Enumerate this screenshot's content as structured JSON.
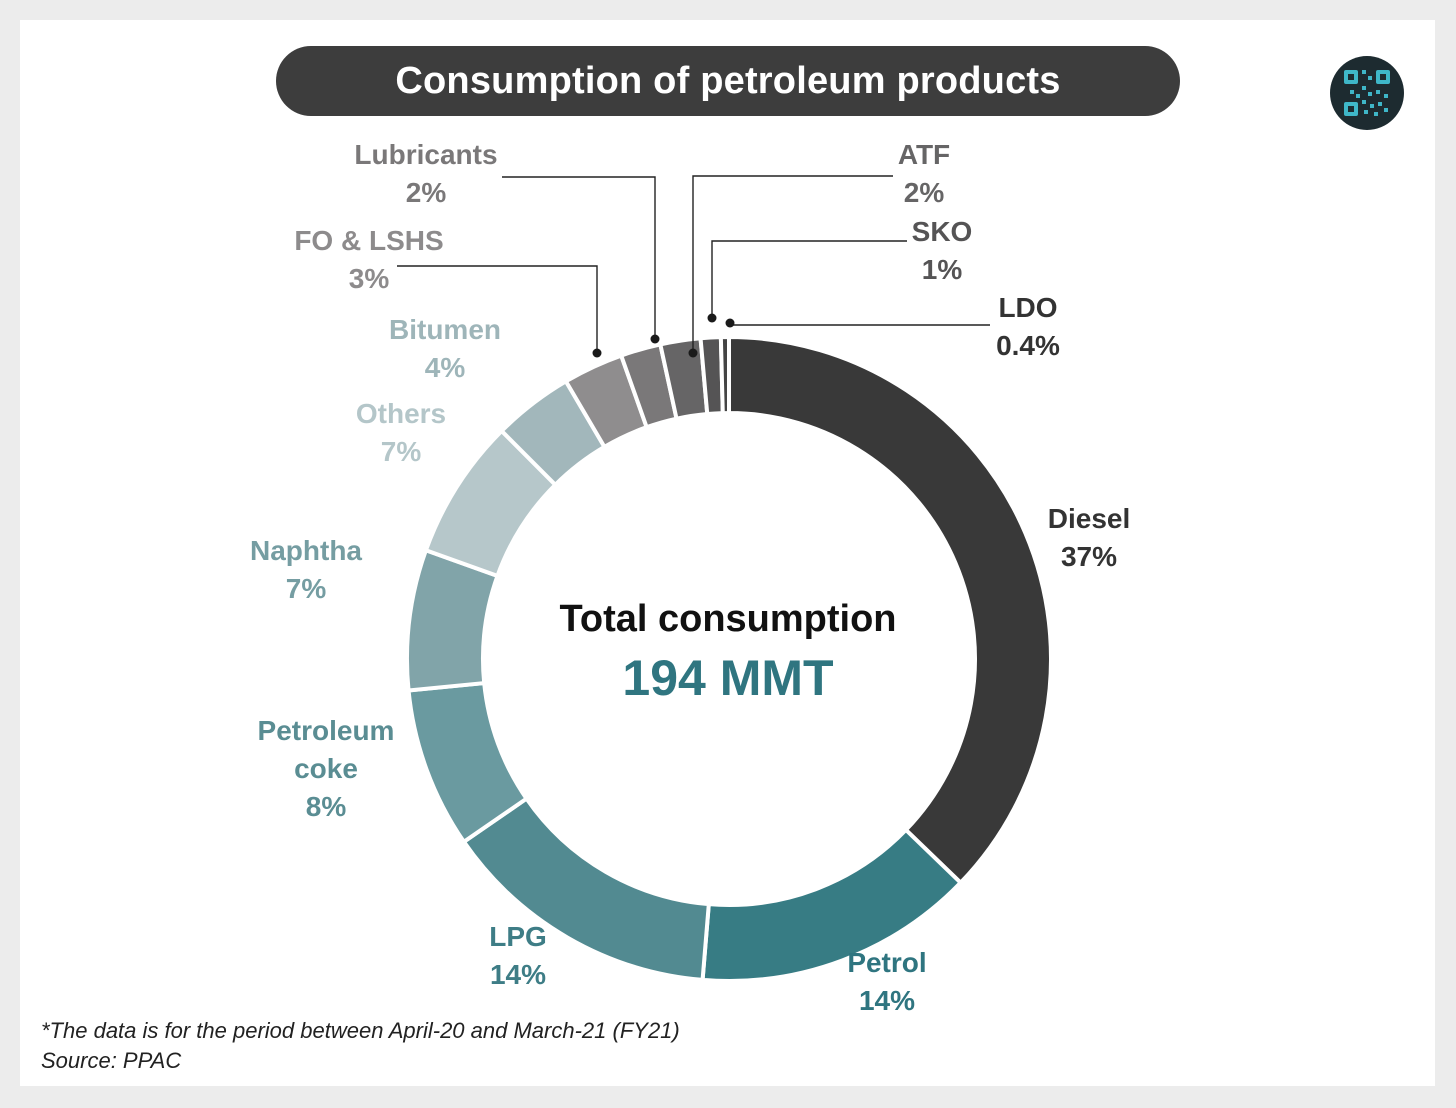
{
  "header": {
    "title": "Consumption of petroleum products"
  },
  "center": {
    "label": "Total consumption",
    "value": "194 MMT",
    "value_color": "#2f7580"
  },
  "footnote": {
    "line1": "*The data is for the period between April-20 and March-21 (FY21)",
    "line2": "Source: PPAC"
  },
  "logo": {
    "icon": "qr-code-icon"
  },
  "chart_data": {
    "type": "pie",
    "donut": true,
    "title": "Consumption of petroleum products",
    "total_label": "Total consumption",
    "total_value": "194 MMT",
    "slices": [
      {
        "name": "Diesel",
        "value": 37,
        "label": "37%",
        "color": "#393939",
        "label_color": "#333333"
      },
      {
        "name": "Petrol",
        "value": 14,
        "label": "14%",
        "color": "#377c84",
        "label_color": "#2f7580"
      },
      {
        "name": "LPG",
        "value": 14,
        "label": "14%",
        "color": "#528a91",
        "label_color": "#3e7d86"
      },
      {
        "name": "Petroleum coke",
        "value": 8,
        "label": "8%",
        "color": "#6a9aa0",
        "label_color": "#5a8d93"
      },
      {
        "name": "Naphtha",
        "value": 7,
        "label": "7%",
        "color": "#81a4a9",
        "label_color": "#759da2"
      },
      {
        "name": "Others",
        "value": 7,
        "label": "7%",
        "color": "#b6c7ca",
        "label_color": "#b4c6c9"
      },
      {
        "name": "Bitumen",
        "value": 4,
        "label": "4%",
        "color": "#a2b7bb",
        "label_color": "#9eb5b9"
      },
      {
        "name": "FO & LSHS",
        "value": 3,
        "label": "3%",
        "color": "#8f8d8e",
        "label_color": "#8d8b8c"
      },
      {
        "name": "Lubricants",
        "value": 2,
        "label": "2%",
        "color": "#7a7879",
        "label_color": "#7a7879"
      },
      {
        "name": "ATF",
        "value": 2,
        "label": "2%",
        "color": "#666566",
        "label_color": "#666566"
      },
      {
        "name": "SKO",
        "value": 1,
        "label": "1%",
        "color": "#555455",
        "label_color": "#555455"
      },
      {
        "name": "LDO",
        "value": 0.4,
        "label": "0.4%",
        "color": "#444444",
        "label_color": "#333333"
      }
    ]
  }
}
